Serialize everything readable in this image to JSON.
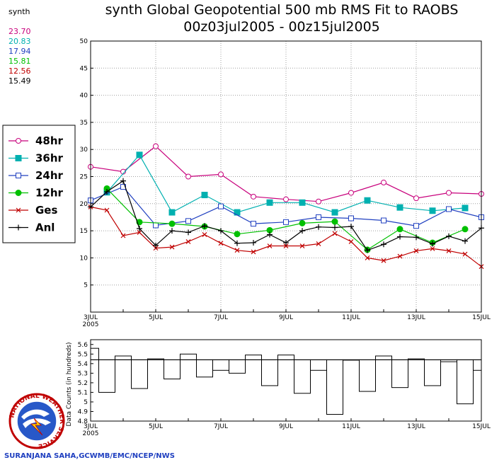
{
  "page": {
    "title_line1": "synth Global Geopotential 500 mb RMS Fit to RAOBS",
    "title_line2": "00z03jul2005 - 00z15jul2005",
    "credit": "SURANJANA SAHA,GCWMB/EMC/NCEP/NWS",
    "logo_text": "NATIONAL WEATHER SERVICE"
  },
  "stats": {
    "label": "synth",
    "values": [
      {
        "text": "23.70",
        "color": "#c8007c"
      },
      {
        "text": "20.83",
        "color": "#00b0b0"
      },
      {
        "text": "17.94",
        "color": "#2040c0"
      },
      {
        "text": "15.81",
        "color": "#00c000"
      },
      {
        "text": "12.56",
        "color": "#c00000"
      },
      {
        "text": "15.49",
        "color": "#000000"
      }
    ]
  },
  "colors": {
    "48hr": "#c8007c",
    "36hr": "#00b0b0",
    "24hr": "#2040c0",
    "12hr": "#00c000",
    "Ges": "#c00000",
    "Anl": "#000000",
    "grid": "#a0a0a0"
  },
  "chart_data": [
    {
      "type": "line",
      "title": "synth Global Geopotential 500 mb RMS Fit to RAOBS",
      "subtitle": "00z03jul2005 - 00z15jul2005",
      "xlabel": "",
      "ylabel": "",
      "x_unit": "day index (0 = 3JUL 00z)",
      "xlim": [
        0,
        12
      ],
      "ylim": [
        0,
        50
      ],
      "yticks": [
        5,
        10,
        15,
        20,
        25,
        30,
        35,
        40,
        45,
        50
      ],
      "xticks": [
        {
          "x": 0,
          "label": "3JUL"
        },
        {
          "x": 2,
          "label": "5JUL"
        },
        {
          "x": 4,
          "label": "7JUL"
        },
        {
          "x": 6,
          "label": "9JUL"
        },
        {
          "x": 8,
          "label": "11JUL"
        },
        {
          "x": 10,
          "label": "13JUL"
        },
        {
          "x": 12,
          "label": "15JUL"
        }
      ],
      "year_label": "2005",
      "grid": true,
      "legend_position": "left",
      "series": [
        {
          "name": "48hr",
          "marker": "circle-open",
          "x": [
            0,
            1,
            2,
            3,
            4,
            5,
            6,
            7,
            8,
            9,
            10,
            11,
            12
          ],
          "y": [
            26.8,
            25.9,
            30.6,
            25.0,
            25.4,
            21.3,
            20.8,
            20.4,
            22.0,
            23.9,
            21.0,
            22.0,
            21.8
          ]
        },
        {
          "name": "36hr",
          "marker": "square-filled",
          "x": [
            0.5,
            1.5,
            2.5,
            3.5,
            4.5,
            5.5,
            6.5,
            7.5,
            8.5,
            9.5,
            10.5,
            11.5
          ],
          "y": [
            22.1,
            29.0,
            18.4,
            21.6,
            18.4,
            20.2,
            20.2,
            18.4,
            20.6,
            19.3,
            18.7,
            19.2
          ]
        },
        {
          "name": "24hr",
          "marker": "square-open",
          "x": [
            0,
            1,
            2,
            3,
            4,
            5,
            6,
            7,
            8,
            9,
            10,
            11,
            12
          ],
          "y": [
            20.6,
            23.1,
            16.0,
            16.8,
            19.5,
            16.3,
            16.6,
            17.5,
            17.3,
            16.9,
            15.9,
            19.0,
            17.5
          ]
        },
        {
          "name": "12hr",
          "marker": "circle-filled",
          "x": [
            0.5,
            1.5,
            2.5,
            3.5,
            4.5,
            5.5,
            6.5,
            7.5,
            8.5,
            9.5,
            10.5,
            11.5
          ],
          "y": [
            22.8,
            16.6,
            16.3,
            15.8,
            14.4,
            15.1,
            16.4,
            16.7,
            11.5,
            15.3,
            12.8,
            15.3
          ]
        },
        {
          "name": "Ges",
          "marker": "x",
          "x": [
            0,
            0.5,
            1,
            1.5,
            2,
            2.5,
            3,
            3.5,
            4,
            4.5,
            5,
            5.5,
            6,
            6.5,
            7,
            7.5,
            8,
            8.5,
            9,
            9.5,
            10,
            10.5,
            11,
            11.5,
            12
          ],
          "y": [
            19.4,
            18.8,
            14.1,
            14.7,
            11.8,
            12.0,
            13.0,
            14.3,
            12.7,
            11.4,
            11.1,
            12.2,
            12.2,
            12.2,
            12.6,
            14.5,
            13.0,
            10.0,
            9.5,
            10.3,
            11.3,
            11.7,
            11.3,
            10.7,
            8.4
          ]
        },
        {
          "name": "Anl",
          "marker": "plus",
          "x": [
            0,
            0.5,
            1,
            1.5,
            2,
            2.5,
            3,
            3.5,
            4,
            4.5,
            5,
            5.5,
            6,
            6.5,
            7,
            7.5,
            8,
            8.5,
            9,
            9.5,
            10,
            10.5,
            11,
            11.5,
            12
          ],
          "y": [
            19.4,
            22.2,
            24.2,
            15.4,
            12.3,
            15.0,
            14.7,
            15.9,
            15.0,
            12.7,
            12.8,
            14.3,
            12.8,
            15.0,
            15.7,
            15.6,
            15.8,
            11.4,
            12.5,
            13.9,
            13.8,
            12.6,
            14.0,
            13.1,
            15.5
          ]
        }
      ]
    },
    {
      "type": "bar",
      "title": "",
      "ylabel": "Data Counts (in hundreds)",
      "xlim": [
        0,
        12
      ],
      "ylim": [
        4.8,
        5.65
      ],
      "yticks": [
        4.8,
        4.9,
        5.0,
        5.1,
        5.2,
        5.3,
        5.4,
        5.5,
        5.6
      ],
      "ytick_labels": [
        "4.8",
        "4.9",
        "5",
        "5.1",
        "5.2",
        "5.3",
        "5.4",
        "5.5",
        "5.6"
      ],
      "mean": 5.44,
      "xticks": [
        {
          "x": 0,
          "label": "3JUL"
        },
        {
          "x": 2,
          "label": "5JUL"
        },
        {
          "x": 4,
          "label": "7JUL"
        },
        {
          "x": 6,
          "label": "9JUL"
        },
        {
          "x": 8,
          "label": "11JUL"
        },
        {
          "x": 10,
          "label": "13JUL"
        },
        {
          "x": 12,
          "label": "15JUL"
        }
      ],
      "year_label": "2005",
      "bin_width": 0.5,
      "values": [
        5.56,
        5.1,
        5.48,
        5.14,
        5.45,
        5.24,
        5.5,
        5.26,
        5.33,
        5.3,
        5.49,
        5.17,
        5.49,
        5.09,
        5.33,
        4.87,
        5.44,
        5.11,
        5.48,
        5.15,
        5.45,
        5.17,
        5.42,
        4.98,
        5.33
      ]
    }
  ]
}
